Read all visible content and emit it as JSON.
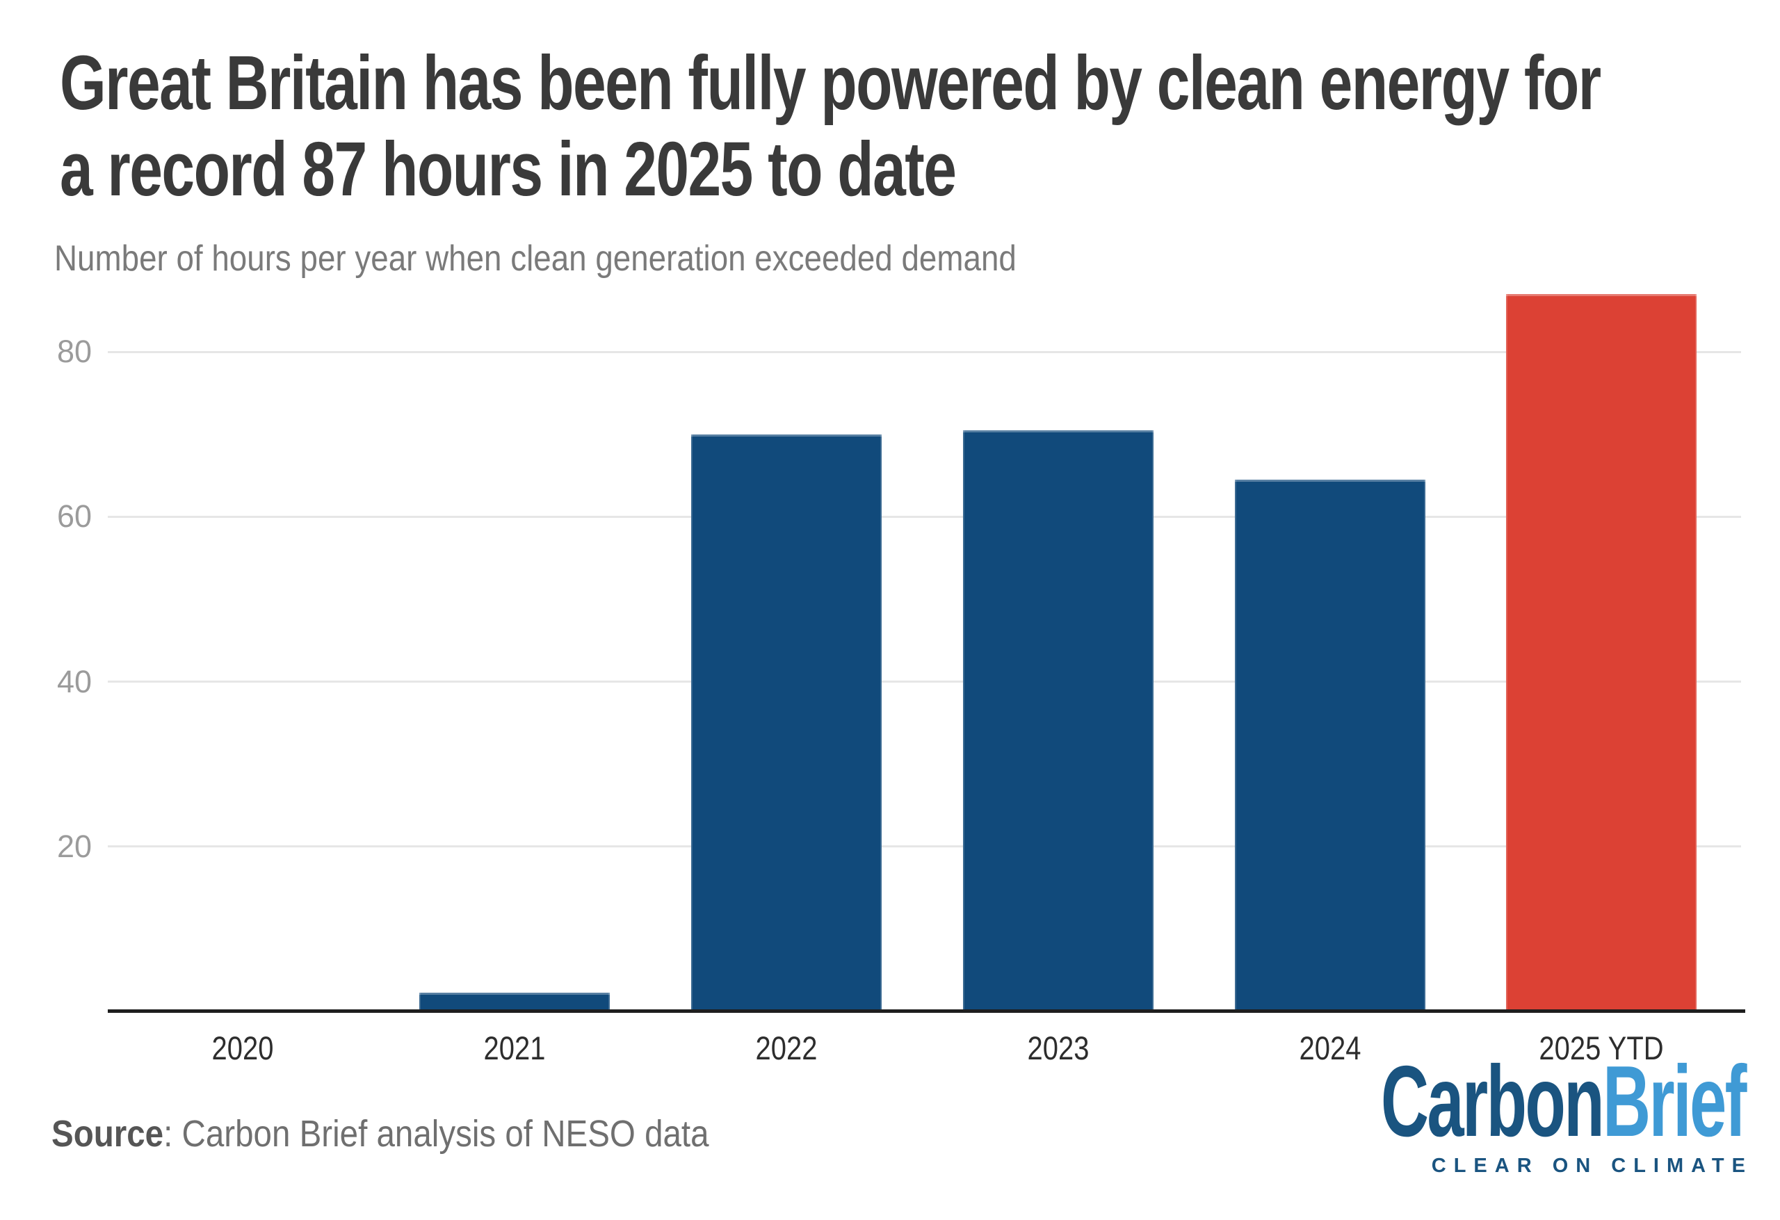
{
  "header": {
    "title_line1": "Great Britain has been fully powered by clean energy for",
    "title_line2": "a record 87 hours in 2025 to date",
    "subtitle": "Number of hours per year when clean generation exceeded demand"
  },
  "source": {
    "label": "Source",
    "text": ": Carbon Brief analysis of NESO data"
  },
  "logo": {
    "word1": "Carbon",
    "word2": "Brief",
    "tagline": "CLEAR ON CLIMATE",
    "color_dark": "#1A5480",
    "color_light": "#3F9AD5"
  },
  "chart_data": {
    "type": "bar",
    "title": "Great Britain has been fully powered by clean energy for a record 87 hours in 2025 to date",
    "subtitle": "Number of hours per year when clean generation exceeded demand",
    "categories": [
      "2020",
      "2021",
      "2022",
      "2023",
      "2024",
      "2025 YTD"
    ],
    "values": [
      0,
      2.3,
      70,
      70.5,
      64.5,
      87
    ],
    "xlabel": "",
    "ylabel": "",
    "yticks": [
      20,
      40,
      60,
      80
    ],
    "ylim": [
      0,
      88
    ],
    "grid": true,
    "legend": "none",
    "bar_color": "#114A7B",
    "highlight_color": "#DC4134",
    "highlight_index": 5,
    "gridline_color": "#E6E6E6",
    "axis_color": "#1E1E1E",
    "tick_label_color": "#9B9B9B"
  }
}
